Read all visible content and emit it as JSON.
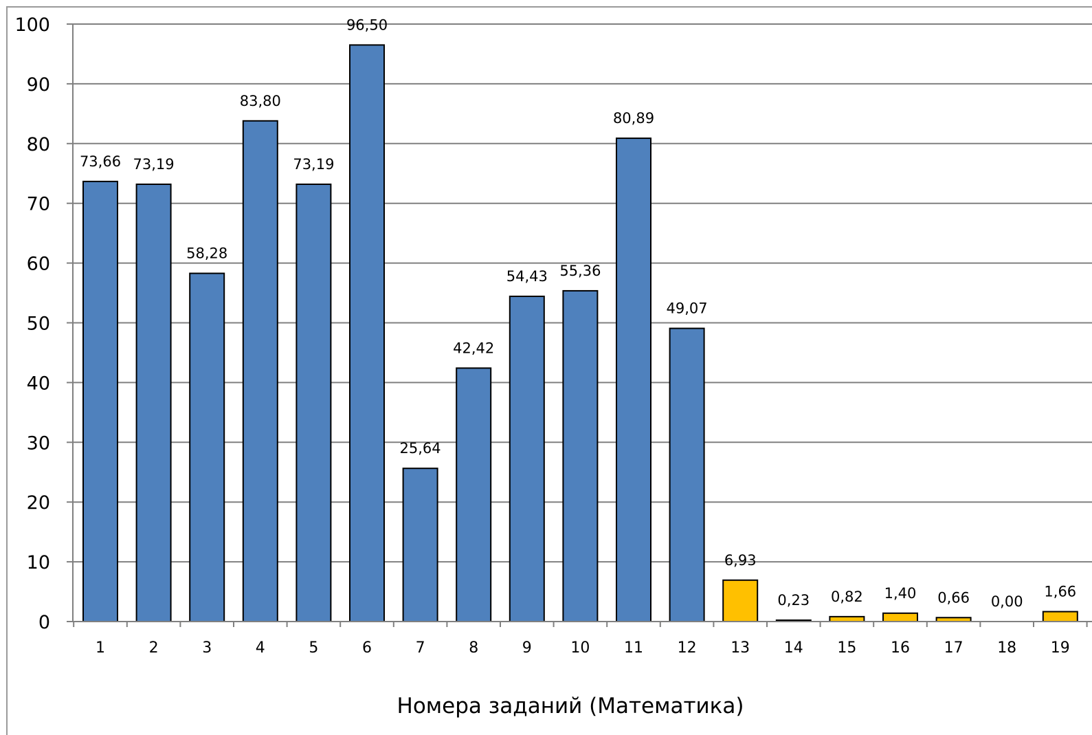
{
  "chart_data": {
    "type": "bar",
    "title": "",
    "xlabel": "Номера заданий (Математика)",
    "ylabel": "",
    "ylim": [
      0,
      100
    ],
    "yticks": [
      "0",
      "10",
      "20",
      "30",
      "40",
      "50",
      "60",
      "70",
      "80",
      "90",
      "100"
    ],
    "ytick_values": [
      0,
      10,
      20,
      30,
      40,
      50,
      60,
      70,
      80,
      90,
      100
    ],
    "grid": true,
    "legend": "none",
    "categories": [
      "1",
      "2",
      "3",
      "4",
      "5",
      "6",
      "7",
      "8",
      "9",
      "10",
      "11",
      "12",
      "13",
      "14",
      "15",
      "16",
      "17",
      "18",
      "19"
    ],
    "values": [
      73.66,
      73.19,
      58.28,
      83.8,
      73.19,
      96.5,
      25.64,
      42.42,
      54.43,
      55.36,
      80.89,
      49.07,
      6.93,
      0.23,
      0.82,
      1.4,
      0.66,
      0.0,
      1.66
    ],
    "value_labels": [
      "73,66",
      "73,19",
      "58,28",
      "83,80",
      "73,19",
      "96,50",
      "25,64",
      "42,42",
      "54,43",
      "55,36",
      "80,89",
      "49,07",
      "6,93",
      "0,23",
      "0,82",
      "1,40",
      "0,66",
      "0,00",
      "1,66"
    ],
    "bar_colors": [
      "#4f81bd",
      "#4f81bd",
      "#4f81bd",
      "#4f81bd",
      "#4f81bd",
      "#4f81bd",
      "#4f81bd",
      "#4f81bd",
      "#4f81bd",
      "#4f81bd",
      "#4f81bd",
      "#4f81bd",
      "#ffc000",
      "#ffc000",
      "#ffc000",
      "#ffc000",
      "#ffc000",
      "#ffc000",
      "#ffc000"
    ],
    "gridline_color": "#808080",
    "bar_outline_color": "#000000"
  }
}
